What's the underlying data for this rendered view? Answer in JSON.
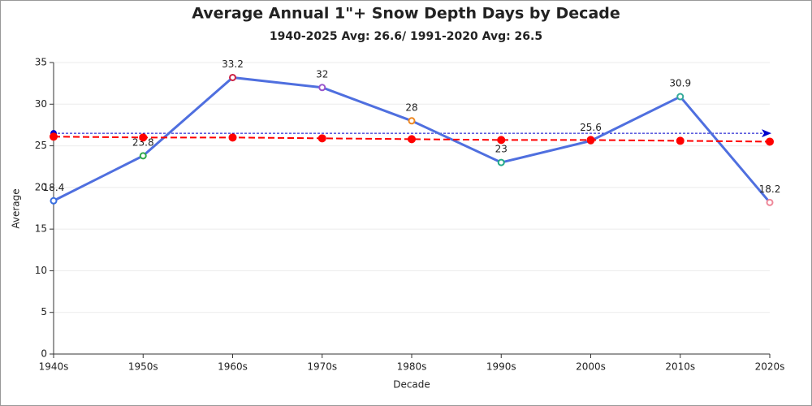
{
  "chart_data": {
    "type": "line",
    "title": "Average Annual 1\"+ Snow Depth Days by Decade",
    "subtitle": "1940-2025 Avg: 26.6/ 1991-2020 Avg: 26.5",
    "x_label": "Decade",
    "y_label": "Average",
    "categories": [
      "1940s",
      "1950s",
      "1960s",
      "1970s",
      "1980s",
      "1990s",
      "2000s",
      "2010s",
      "2020s"
    ],
    "series": [
      {
        "color": "#4f6fdf",
        "values": [
          18.4,
          23.8,
          33.2,
          32,
          28,
          23,
          25.6,
          30.9,
          18.2
        ],
        "point_colors": [
          "#3a6fe0",
          "#2faa4a",
          "#cc2244",
          "#9955cc",
          "#ee8822",
          "#22aa88",
          "#dd3333",
          "#33aa99",
          "#ee8899"
        ],
        "show_labels": true
      },
      {
        "color": "#ff0000",
        "dashed": true,
        "values": [
          26.1,
          26.0,
          26.0,
          25.9,
          25.8,
          25.7,
          25.7,
          25.6,
          25.5
        ],
        "point_colors": [
          "#ff0000",
          "#ff0000",
          "#ff0000",
          "#ff0000",
          "#ff0000",
          "#ff0000",
          "#ff0000",
          "#ff0000",
          "#ff0000"
        ]
      }
    ],
    "ref_line": {
      "value": 26.5,
      "color": "#0000cc"
    },
    "ylim": [
      0,
      35
    ],
    "yticks": [
      0,
      5,
      10,
      15,
      20,
      25,
      30,
      35
    ],
    "grid": true
  }
}
